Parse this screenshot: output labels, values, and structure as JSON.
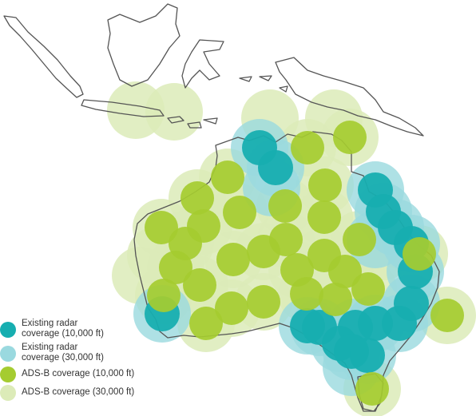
{
  "colors": {
    "radar_10k": "#17aeb0",
    "radar_30k": "#9ad9df",
    "adsb_10k": "#a5cc30",
    "adsb_30k": "#dcebb8",
    "outline": "#555555"
  },
  "legend": [
    {
      "label": "Existing radar\ncoverage (10,000 ft)",
      "color_key": "radar_10k"
    },
    {
      "label": "Existing radar\ncoverage (30,000 ft)",
      "color_key": "radar_30k"
    },
    {
      "label": "ADS-B coverage (10,000 ft)",
      "color_key": "adsb_10k"
    },
    {
      "label": "ADS-B coverage (30,000 ft)",
      "color_key": "adsb_30k"
    }
  ]
}
